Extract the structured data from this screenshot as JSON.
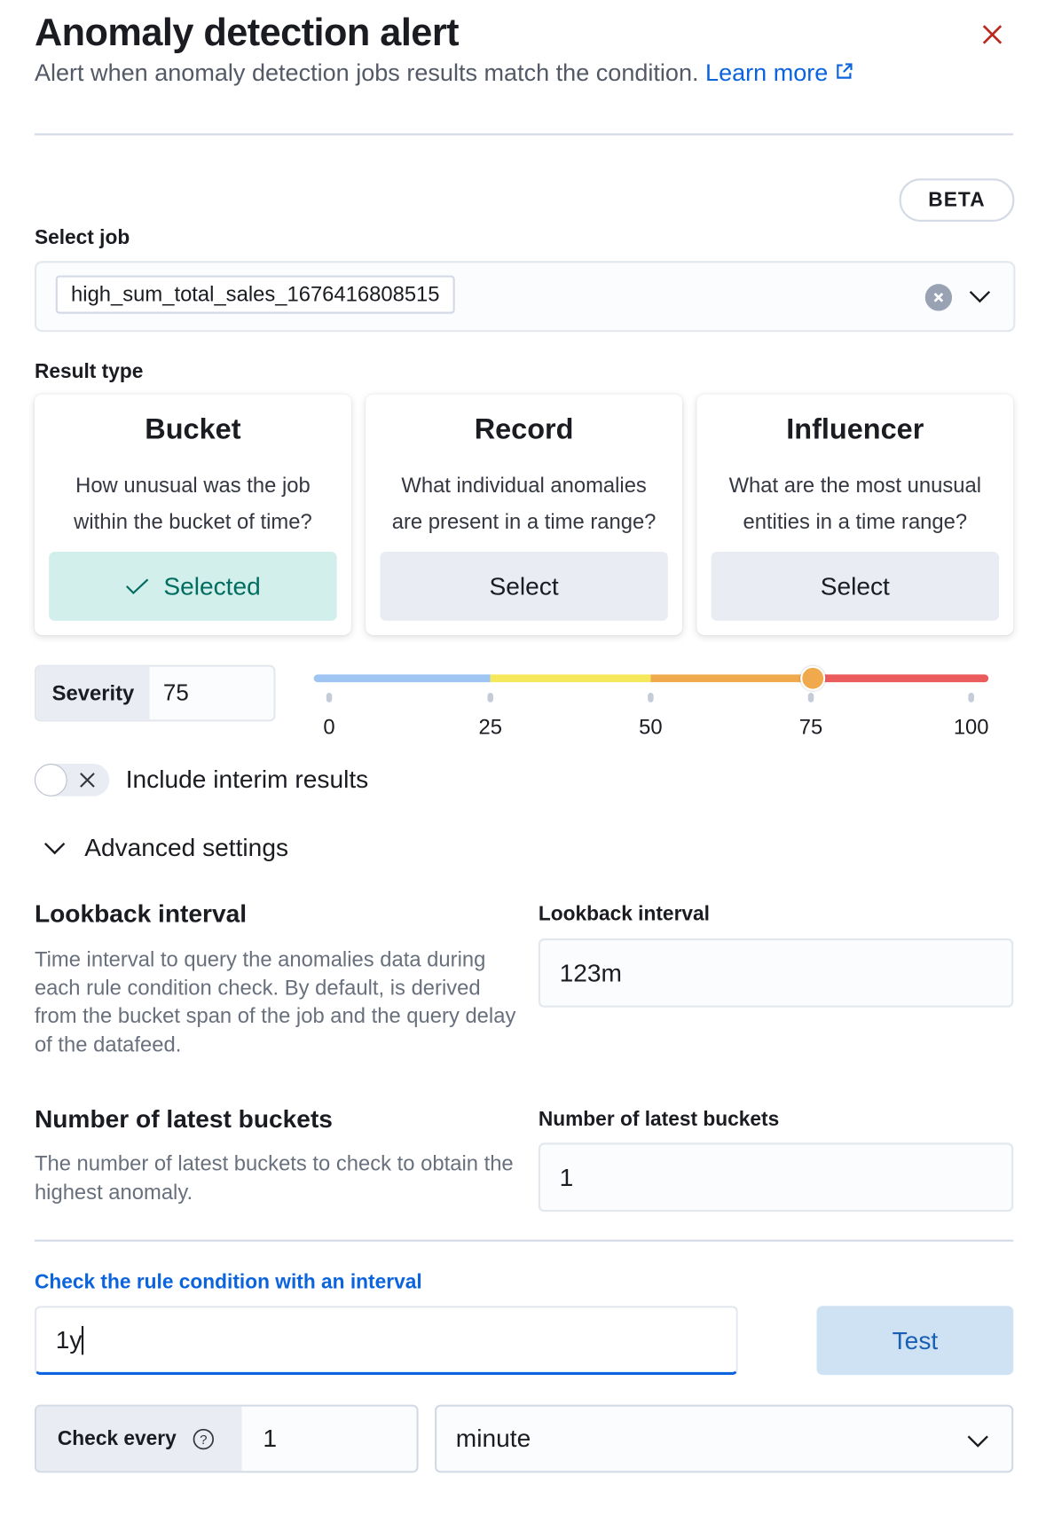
{
  "header": {
    "title": "Anomaly detection alert",
    "subtitle": "Alert when anomaly detection jobs results match the condition.",
    "learn_more": "Learn more",
    "badge": "BETA"
  },
  "job": {
    "label": "Select job",
    "selected": "high_sum_total_sales_1676416808515"
  },
  "result_type": {
    "label": "Result type",
    "cards": [
      {
        "title": "Bucket",
        "desc1": "How unusual was the job",
        "desc2": "within the bucket of time?",
        "button": "Selected",
        "selected": true
      },
      {
        "title": "Record",
        "desc1": "What individual anomalies",
        "desc2": "are present in a time range?",
        "button": "Select",
        "selected": false
      },
      {
        "title": "Influencer",
        "desc1": "What are the most unusual",
        "desc2": "entities in a time range?",
        "button": "Select",
        "selected": false
      }
    ]
  },
  "severity": {
    "label": "Severity",
    "value": "75",
    "slider_value": 75,
    "ticks": [
      "0",
      "25",
      "50",
      "75",
      "100"
    ],
    "colors": [
      "#9fc6f2",
      "#f5e85a",
      "#f0a94c",
      "#ec5b5b"
    ]
  },
  "interim": {
    "label": "Include interim results",
    "enabled": false
  },
  "advanced": {
    "label": "Advanced settings",
    "expanded": true
  },
  "lookback": {
    "heading": "Lookback interval",
    "desc": "Time interval to query the anomalies data during each rule condition check. By default, is derived from the bucket span of the job and the query delay of the datafeed.",
    "field_label": "Lookback interval",
    "value": "123m"
  },
  "buckets": {
    "heading": "Number of latest buckets",
    "desc": "The number of latest buckets to check to obtain the highest anomaly.",
    "field_label": "Number of latest buckets",
    "value": "1"
  },
  "check_interval": {
    "label": "Check the rule condition with an interval",
    "value": "1y",
    "test": "Test"
  },
  "check_every": {
    "label": "Check every",
    "value": "1",
    "unit": "minute"
  }
}
